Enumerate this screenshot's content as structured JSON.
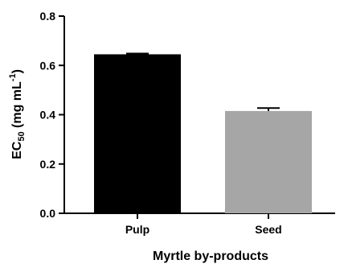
{
  "chart_data": {
    "type": "bar",
    "categories": [
      "Pulp",
      "Seed"
    ],
    "values": [
      0.645,
      0.415
    ],
    "error": [
      0.003,
      0.012
    ],
    "colors": [
      "#000000",
      "#a6a6a6"
    ],
    "xlabel": "Myrtle by-products",
    "ylabel": "EC50 (mg mL-1)",
    "ylabel_parts": {
      "main": "EC",
      "sub": "50",
      "unit": " (mg mL",
      "sup": "-1",
      "close": ")"
    },
    "ylim": [
      0,
      0.8
    ],
    "yticks": [
      "0.0",
      "0.2",
      "0.4",
      "0.6",
      "0.8"
    ],
    "grid": false
  }
}
